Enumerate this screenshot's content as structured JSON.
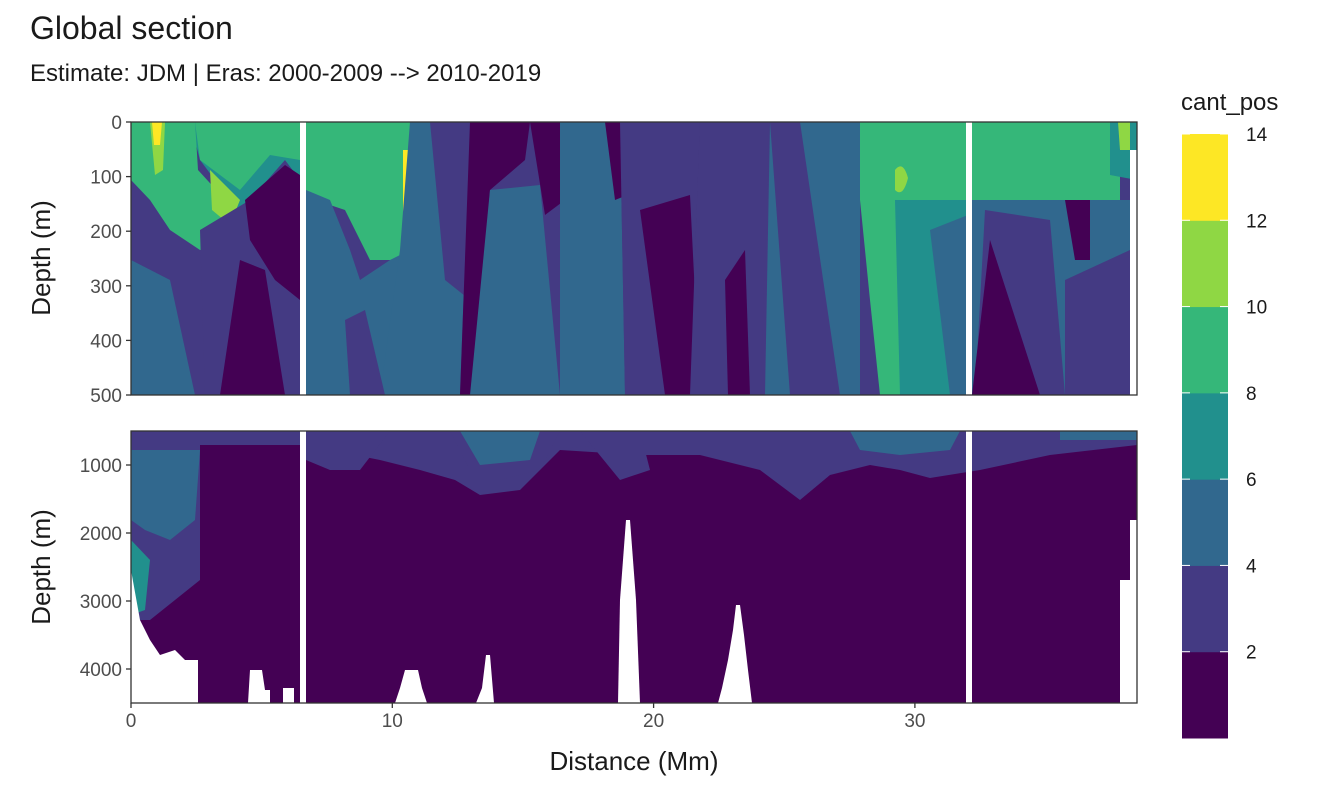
{
  "chart_data": {
    "type": "heatmap",
    "title": "Global section",
    "subtitle": "Estimate: JDM  | Eras: 2000-2009 --> 2010-2019",
    "xlabel": "Distance (Mm)",
    "ylabel": "Depth (m)",
    "xlim": [
      0,
      38.5
    ],
    "x_ticks": [
      "0",
      "10",
      "20",
      "30"
    ],
    "panels": [
      {
        "name": "upper",
        "ylim": [
          0,
          500
        ],
        "y_ticks": [
          "0",
          "100",
          "200",
          "300",
          "400",
          "500"
        ]
      },
      {
        "name": "lower",
        "ylim": [
          500,
          4500
        ],
        "y_ticks": [
          "1000",
          "2000",
          "3000",
          "4000"
        ]
      }
    ],
    "legend": {
      "title": "cant_pos",
      "labels": [
        "2",
        "4",
        "6",
        "8",
        "10",
        "12",
        "14"
      ],
      "colors": [
        "#440154",
        "#443a83",
        "#31688e",
        "#21908d",
        "#35b779",
        "#8fd744",
        "#fde725"
      ]
    },
    "gaps_distance_mm": [
      6.6,
      32.1
    ]
  }
}
